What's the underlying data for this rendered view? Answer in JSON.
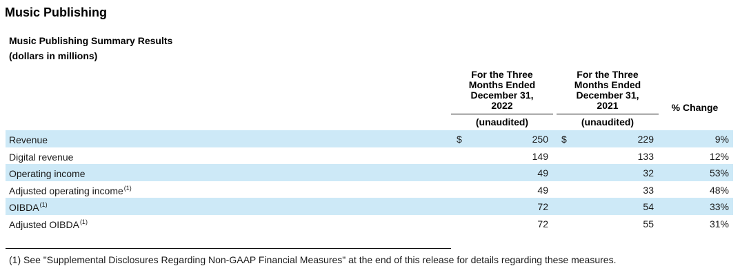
{
  "section_title": "Music Publishing",
  "table_title": "Music Publishing Summary Results",
  "table_unit": "(dollars in millions)",
  "columns": [
    {
      "header_lines": [
        "For the Three",
        "Months Ended",
        "December 31,",
        "2022"
      ],
      "subheader": "(unaudited)"
    },
    {
      "header_lines": [
        "For the Three",
        "Months Ended",
        "December 31,",
        "2021"
      ],
      "subheader": "(unaudited)"
    },
    {
      "header_lines": [
        "% Change"
      ],
      "subheader": ""
    }
  ],
  "rows": [
    {
      "label": "Revenue",
      "note": "",
      "dollar": "$",
      "v2022": "250",
      "v2021": "229",
      "change": "9%"
    },
    {
      "label": "Digital revenue",
      "note": "",
      "dollar": "",
      "v2022": "149",
      "v2021": "133",
      "change": "12%"
    },
    {
      "label": "Operating income",
      "note": "",
      "dollar": "",
      "v2022": "49",
      "v2021": "32",
      "change": "53%"
    },
    {
      "label": "Adjusted operating income",
      "note": "(1)",
      "dollar": "",
      "v2022": "49",
      "v2021": "33",
      "change": "48%"
    },
    {
      "label": "OIBDA",
      "note": "(1)",
      "dollar": "",
      "v2022": "72",
      "v2021": "54",
      "change": "33%"
    },
    {
      "label": "Adjusted OIBDA",
      "note": "(1)",
      "dollar": "",
      "v2022": "72",
      "v2021": "55",
      "change": "31%"
    }
  ],
  "footnote": "(1) See \"Supplemental Disclosures Regarding Non-GAAP Financial Measures\" at the end of this release for details regarding these measures.",
  "colors": {
    "row_shade": "#cde9f7"
  }
}
